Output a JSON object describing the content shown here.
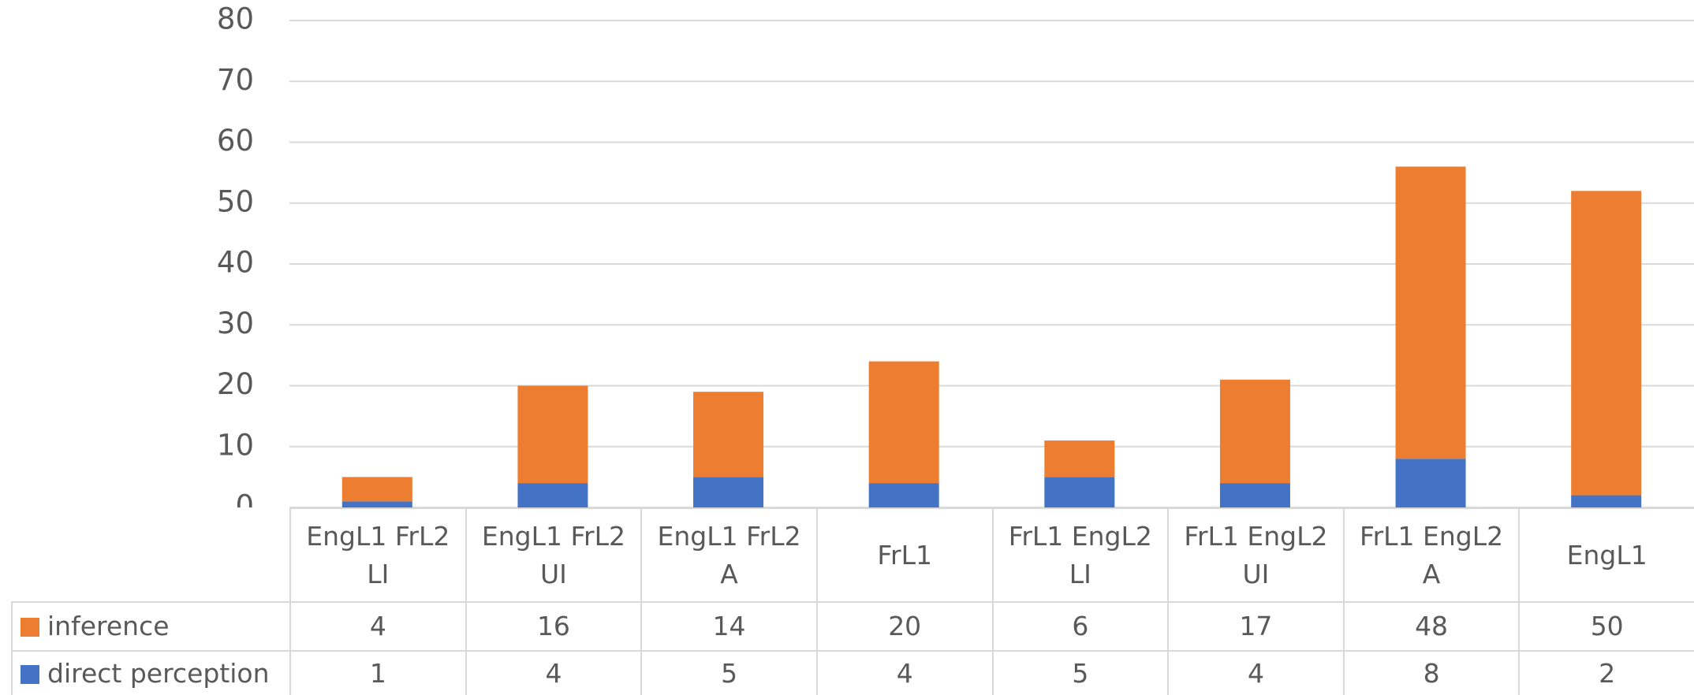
{
  "chart_data": {
    "type": "stacked_bar",
    "categories": [
      "EngL1 FrL2 LI",
      "EngL1 FrL2 UI",
      "EngL1 FrL2 A",
      "FrL1",
      "FrL1 EngL2 LI",
      "FrL1 EngL2 UI",
      "FrL1 EngL2 A",
      "EngL1"
    ],
    "series": [
      {
        "name": "inference",
        "color": "#ed7d31",
        "values": [
          4,
          16,
          14,
          20,
          6,
          17,
          48,
          50
        ]
      },
      {
        "name": "direct perception",
        "color": "#4472c4",
        "values": [
          1,
          4,
          5,
          4,
          5,
          4,
          8,
          2
        ]
      }
    ],
    "ylim": [
      0,
      80
    ],
    "yticks": [
      0,
      10,
      20,
      30,
      40,
      50,
      60,
      70,
      80
    ],
    "grid": true,
    "data_table": true
  }
}
